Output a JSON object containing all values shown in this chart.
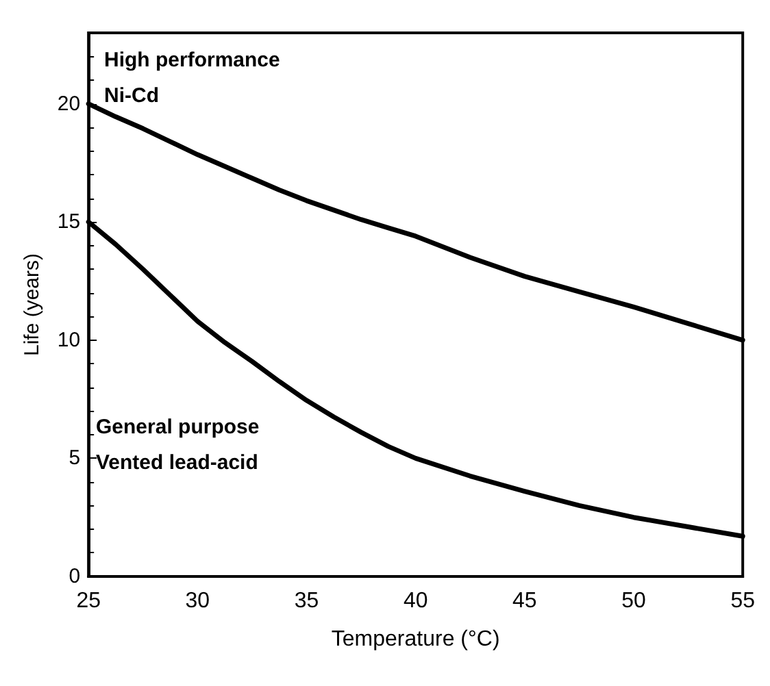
{
  "chart_data": {
    "type": "line",
    "xlabel": "Temperature (°C)",
    "ylabel": "Life (years)",
    "x": [
      25,
      26.25,
      27.5,
      28.75,
      30,
      31.25,
      32.5,
      33.75,
      35,
      36.25,
      37.5,
      38.75,
      40,
      42.5,
      45,
      47.5,
      50,
      52.5,
      55
    ],
    "series": [
      {
        "color": "#000000",
        "values": [
          20,
          19.45,
          18.95,
          18.4,
          17.85,
          17.35,
          16.85,
          16.35,
          15.9,
          15.5,
          15.1,
          14.75,
          14.4,
          13.5,
          12.7,
          12.05,
          11.4,
          10.7,
          10
        ]
      },
      {
        "color": "#000000",
        "values": [
          15,
          14.05,
          13,
          11.9,
          10.8,
          9.9,
          9.1,
          8.25,
          7.45,
          6.75,
          6.1,
          5.5,
          5,
          4.25,
          3.6,
          3,
          2.5,
          2.1,
          1.7
        ]
      }
    ],
    "xlim": [
      25,
      55
    ],
    "xticks": [
      25,
      30,
      35,
      40,
      45,
      50,
      55
    ],
    "ylim": [
      0,
      23
    ],
    "yticks": [
      0,
      5,
      10,
      15,
      20
    ],
    "grid": false,
    "marker": "none",
    "line_style": "solid",
    "annotations": [
      "High performance",
      "Ni-Cd",
      "General purpose",
      "Vented lead-acid"
    ]
  }
}
